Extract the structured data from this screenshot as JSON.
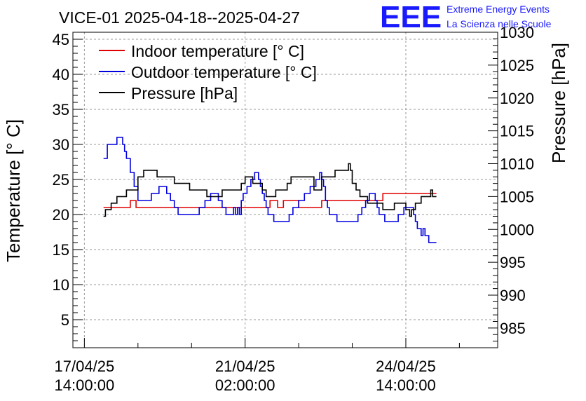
{
  "logo": {
    "text": "EEE",
    "line1": "Extreme Energy Events",
    "line2": "La Scienza nelle Scuole",
    "color": "#1a1aff"
  },
  "chart_data": {
    "type": "line",
    "title": "VICE-01 2025-04-18--2025-04-27",
    "ylabel": "Temperature [° C]",
    "y2label": "Pressure [hPa]",
    "ylim": [
      1,
      46
    ],
    "y2lim": [
      982,
      1030
    ],
    "xlim": [
      -6,
      216
    ],
    "x_unit": "hours since 17/04/25 14:00:00",
    "yticks": [
      5,
      10,
      15,
      20,
      25,
      30,
      35,
      40,
      45
    ],
    "y2ticks": [
      985,
      990,
      995,
      1000,
      1005,
      1010,
      1015,
      1020,
      1025,
      1030
    ],
    "xticks": [
      {
        "x": 0,
        "line1": "17/04/25",
        "line2": "14:00:00"
      },
      {
        "x": 84,
        "line1": "21/04/25",
        "line2": "02:00:00"
      },
      {
        "x": 168,
        "line1": "24/04/25",
        "line2": "14:00:00"
      }
    ],
    "grid": true,
    "legend_position": "top-left",
    "series": [
      {
        "name": "Indoor temperature [° C]",
        "axis": "left",
        "color": "#e00000",
        "x": [
          10,
          23,
          24,
          26,
          27,
          96,
          97,
          100,
          101,
          103,
          104,
          111,
          112,
          123,
          124,
          140,
          141,
          155,
          156,
          165,
          166,
          184
        ],
        "y": [
          21,
          21,
          22,
          22,
          21,
          21,
          22,
          22,
          21,
          21,
          22,
          22,
          21,
          21,
          22,
          22,
          22,
          22,
          23,
          23,
          23,
          23
        ]
      },
      {
        "name": "Outdoor temperature [° C]",
        "axis": "left",
        "color": "#0000dd",
        "x": [
          0,
          10,
          12,
          15,
          17,
          19,
          20,
          21,
          22,
          24,
          26,
          28,
          31,
          35,
          39,
          43,
          45,
          47,
          49,
          51,
          54,
          57,
          60,
          63,
          66,
          68,
          70,
          72,
          74,
          76,
          78,
          79,
          80,
          81,
          82,
          83,
          85,
          87,
          89,
          91,
          92,
          93,
          94,
          95,
          96,
          97,
          99,
          101,
          103,
          105,
          107,
          109,
          112,
          115,
          118,
          121,
          123,
          124,
          125,
          126,
          127,
          128,
          130,
          132,
          134,
          137,
          140,
          143,
          145,
          147,
          149,
          151,
          152,
          153,
          154,
          155,
          156,
          157,
          158,
          160,
          162,
          164,
          167,
          170,
          172,
          173,
          174,
          175,
          176,
          177,
          178,
          179,
          180,
          181,
          182,
          184
        ],
        "y": [
          null,
          28,
          30,
          30,
          31,
          31,
          30,
          29,
          28,
          26,
          24,
          22,
          22,
          23,
          24,
          23,
          22,
          21,
          20,
          20,
          20,
          20,
          21,
          22,
          23,
          23,
          22,
          21,
          20,
          20,
          21,
          20,
          21,
          20,
          22,
          23,
          24,
          25,
          26,
          25,
          24,
          23,
          22,
          21,
          20,
          20,
          19,
          19,
          19,
          19,
          20,
          21,
          22,
          23,
          24,
          25,
          26,
          25,
          24,
          22,
          21,
          20,
          20,
          19,
          19,
          19,
          19,
          20,
          21,
          22,
          23,
          23,
          22,
          21,
          20,
          20,
          20,
          19,
          19,
          19,
          19,
          20,
          21,
          21,
          20,
          19,
          18,
          18,
          17,
          18,
          17,
          17,
          16,
          16,
          16,
          16
        ]
      },
      {
        "name": "Pressure [hPa]",
        "axis": "right",
        "color": "#000000",
        "x": [
          10,
          11,
          12,
          14,
          17,
          20,
          22,
          26,
          28,
          31,
          33,
          38,
          40,
          42,
          47,
          52,
          55,
          57,
          60,
          62,
          64,
          67,
          70,
          72,
          74,
          78,
          80,
          82,
          84,
          86,
          88,
          90,
          93,
          95,
          97,
          100,
          103,
          106,
          108,
          111,
          114,
          117,
          120,
          122,
          124,
          126,
          128,
          131,
          134,
          137,
          138,
          139,
          140,
          142,
          144,
          146,
          148,
          150,
          152,
          154,
          156,
          158,
          160,
          162,
          164,
          166,
          168,
          170,
          171,
          172,
          173,
          174,
          176,
          178,
          180,
          181,
          182,
          184
        ],
        "y": [
          1002,
          1003,
          1003,
          1004,
          1005,
          1005,
          1006,
          1006,
          1008,
          1009,
          1009,
          1008,
          1008,
          1008,
          1007,
          1007,
          1006,
          1006,
          1006,
          1006,
          1005,
          1005,
          1005,
          1006,
          1006,
          1006,
          1006,
          1007,
          1008,
          1008,
          1007,
          1007,
          1006,
          1005,
          1005,
          1006,
          1006,
          1007,
          1008,
          1008,
          1008,
          1008,
          1006,
          1006,
          1008,
          1008,
          1008,
          1009,
          1009,
          1009,
          1010,
          1009,
          1007,
          1006,
          1005,
          1005,
          1004,
          1004,
          1004,
          1004,
          1003,
          1003,
          1003,
          1004,
          1004,
          1004,
          1003,
          1002,
          1003,
          1003,
          1004,
          1004,
          1005,
          1005,
          1005,
          1006,
          1005,
          1005
        ]
      }
    ]
  }
}
